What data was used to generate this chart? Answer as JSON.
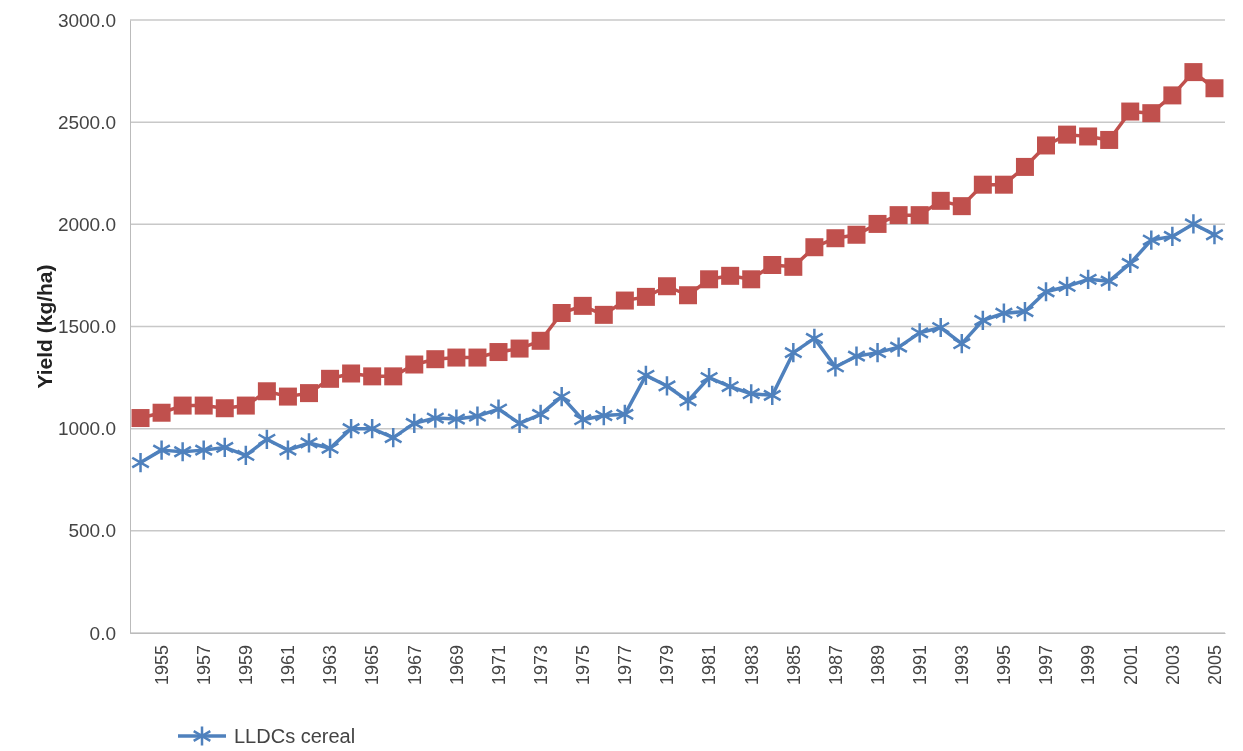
{
  "chart_data": {
    "type": "line",
    "ylabel": "Yield (kg/ha)",
    "categories": [
      null,
      "1955",
      null,
      "1957",
      null,
      "1959",
      null,
      "1961",
      null,
      "1963",
      null,
      "1965",
      null,
      "1967",
      null,
      "1969",
      null,
      "1971",
      null,
      "1973",
      null,
      "1975",
      null,
      "1977",
      null,
      "1979",
      null,
      "1981",
      null,
      "1983",
      null,
      "1985",
      null,
      "1987",
      null,
      "1989",
      null,
      "1991",
      null,
      "1993",
      null,
      "1995",
      null,
      "1997",
      null,
      "1999",
      null,
      "2001",
      null,
      "2003",
      null,
      "2005"
    ],
    "series": [
      {
        "name": "LLDCs cereal",
        "color": "#4f81bd",
        "marker": "cross",
        "values": [
          834,
          895,
          887,
          895,
          908,
          869,
          948,
          895,
          930,
          904,
          1000,
          1000,
          956,
          1026,
          1052,
          1047,
          1061,
          1096,
          1026,
          1070,
          1157,
          1044,
          1064,
          1070,
          1261,
          1209,
          1136,
          1250,
          1206,
          1171,
          1163,
          1372,
          1442,
          1302,
          1355,
          1372,
          1399,
          1469,
          1495,
          1416,
          1530,
          1565,
          1573,
          1670,
          1696,
          1731,
          1722,
          1809,
          1923,
          1941,
          2002,
          1949
        ]
      },
      {
        "color": "#c0504d",
        "marker": "square",
        "values": [
          1052,
          1078,
          1113,
          1113,
          1100,
          1113,
          1183,
          1157,
          1174,
          1244,
          1270,
          1256,
          1256,
          1314,
          1340,
          1348,
          1348,
          1375,
          1392,
          1430,
          1566,
          1601,
          1557,
          1627,
          1645,
          1697,
          1653,
          1731,
          1748,
          1731,
          1801,
          1792,
          1888,
          1932,
          1949,
          2002,
          2045,
          2045,
          2115,
          2089,
          2194,
          2194,
          2281,
          2386,
          2439,
          2430,
          2413,
          2552,
          2544,
          2631,
          2745,
          2666
        ]
      }
    ],
    "ylim": [
      0,
      3000
    ],
    "yticks": [
      {
        "value": 0,
        "label": "0.0"
      },
      {
        "value": 500,
        "label": "500.0"
      },
      {
        "value": 1000,
        "label": "1000.0"
      },
      {
        "value": 1500,
        "label": "1500.0"
      },
      {
        "value": 2000,
        "label": "2000.0"
      },
      {
        "value": 2500,
        "label": "2500.0"
      },
      {
        "value": 3000,
        "label": "3000.0"
      }
    ],
    "grid": "y",
    "legend": "bottom",
    "line_style": "solid"
  }
}
